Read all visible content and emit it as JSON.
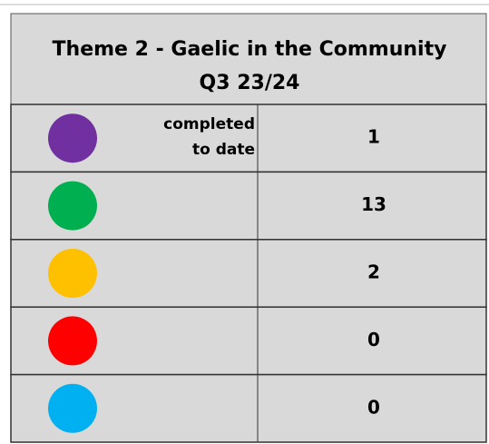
{
  "header": {
    "title": "Theme 2 - Gaelic in the Community",
    "subtitle": "Q3 23/24"
  },
  "table": {
    "label": "completed to date",
    "rows": [
      {
        "color": "#7030a0",
        "value": "1"
      },
      {
        "color": "#00b050",
        "value": "13"
      },
      {
        "color": "#ffc000",
        "value": "2"
      },
      {
        "color": "#ff0000",
        "value": "0"
      },
      {
        "color": "#00b0f0",
        "value": "0"
      }
    ]
  }
}
